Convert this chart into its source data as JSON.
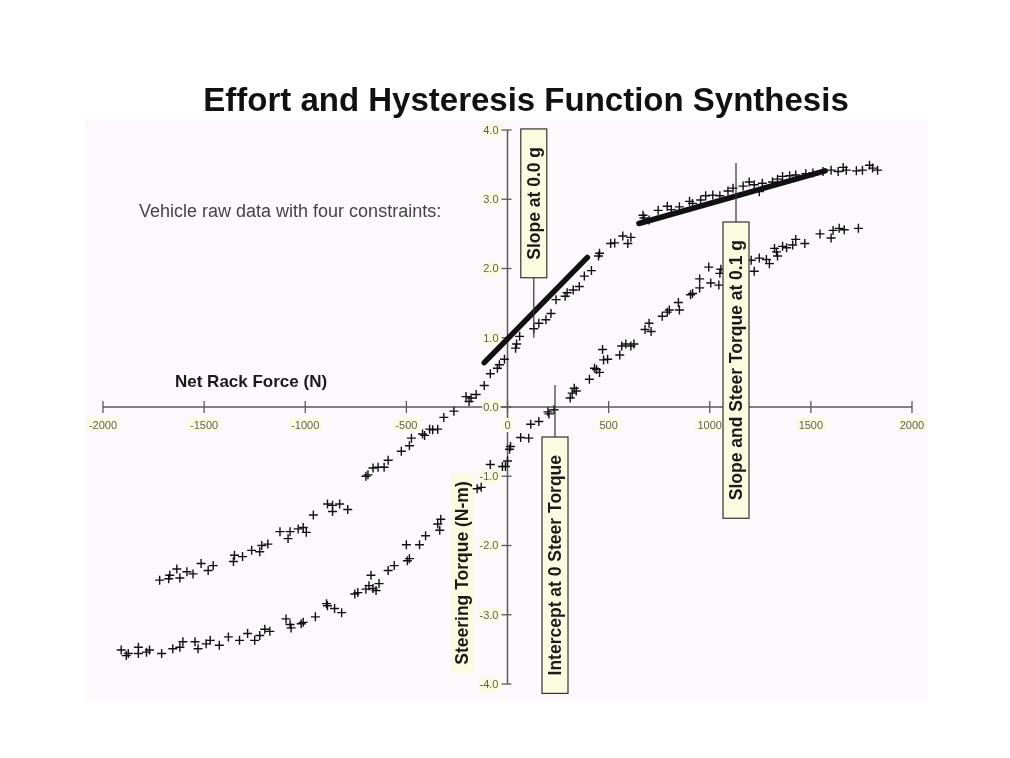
{
  "chart_data": {
    "type": "scatter",
    "title": "Effort and Hysteresis Function Synthesis",
    "xlabel": "Net Rack Force (N)",
    "ylabel": "Steering Torque (N-m)",
    "xlim": [
      -2000,
      2000
    ],
    "ylim": [
      -4,
      4
    ],
    "xticks": [
      -2000,
      -1500,
      -1000,
      -500,
      0,
      500,
      1000,
      1500,
      2000
    ],
    "yticks": [
      {
        "value": 4,
        "label": "4.0"
      },
      {
        "value": 3,
        "label": "3.0"
      },
      {
        "value": 2,
        "label": "2.0"
      },
      {
        "value": 1,
        "label": "1.0"
      },
      {
        "value": 0,
        "label": "0.0"
      },
      {
        "value": -1,
        "label": "-1.0"
      },
      {
        "value": -2,
        "label": "-2.0"
      },
      {
        "value": -3,
        "label": "-3.0"
      },
      {
        "value": -4,
        "label": "-4.0"
      }
    ],
    "marker": "cross",
    "annotations": [
      "Vehicle raw data with four constraints:",
      {
        "text": "Slope at 0.0 g",
        "x": 130,
        "y": 1.0
      },
      "Slope and Steer Torque at 0.1 g",
      "Intercept at 0 Steer Torque"
    ],
    "series": [
      {
        "color": "#111111",
        "x": [
          -115,
          -85,
          -50,
          -40,
          -15,
          40,
          45,
          60,
          130,
          155,
          190,
          215,
          240,
          285,
          295,
          325,
          355,
          380,
          415,
          450,
          455,
          510,
          530,
          570,
          595,
          610,
          670,
          675,
          700,
          745,
          790,
          810,
          850,
          900,
          915,
          955,
          980,
          1015,
          1050,
          1090,
          1115,
          1165,
          1195,
          1220,
          1245,
          1260,
          1310,
          1335,
          1360,
          1395,
          1425,
          1475,
          1510,
          1560,
          1600,
          1635,
          1660,
          1675,
          1725,
          1755,
          1790,
          1805,
          1830
        ],
        "values": [
          0.31,
          0.48,
          0.56,
          0.61,
          0.69,
          0.85,
          0.91,
          1.02,
          1.13,
          1.21,
          1.26,
          1.35,
          1.55,
          1.6,
          1.65,
          1.69,
          1.74,
          1.89,
          1.97,
          2.18,
          2.22,
          2.36,
          2.37,
          2.47,
          2.36,
          2.45,
          2.77,
          2.73,
          2.7,
          2.84,
          2.9,
          2.85,
          2.89,
          2.97,
          2.94,
          2.99,
          3.05,
          3.06,
          3.05,
          3.12,
          3.16,
          3.19,
          3.25,
          3.21,
          3.11,
          3.23,
          3.25,
          3.29,
          3.33,
          3.34,
          3.35,
          3.37,
          3.38,
          3.4,
          3.42,
          3.4,
          3.46,
          3.42,
          3.41,
          3.42,
          3.49,
          3.45,
          3.42
        ]
      },
      {
        "color": "#111111",
        "x": [
          -155,
          -180,
          -190,
          -205,
          -265,
          -315,
          -345,
          -370,
          -385,
          -410,
          -420,
          -475,
          -485,
          -525,
          -590,
          -610,
          -640,
          -665,
          -690,
          -700,
          -790,
          -830,
          -865,
          -865,
          -890,
          -960,
          -995,
          -1010,
          -1035,
          -1075,
          -1085,
          -1125,
          -1185,
          -1215,
          -1225,
          -1265,
          -1310,
          -1350,
          -1355,
          -1455,
          -1480,
          -1515,
          -1555,
          -1585,
          -1620,
          -1635,
          -1670,
          -1675,
          -1720
        ],
        "values": [
          0.18,
          0.13,
          0.08,
          0.15,
          -0.06,
          -0.15,
          -0.32,
          -0.33,
          -0.32,
          -0.41,
          -0.39,
          -0.45,
          -0.56,
          -0.64,
          -0.77,
          -0.87,
          -0.87,
          -0.88,
          -0.98,
          -1.0,
          -1.48,
          -1.4,
          -1.42,
          -1.51,
          -1.4,
          -1.56,
          -1.81,
          -1.74,
          -1.76,
          -1.8,
          -1.9,
          -1.8,
          -1.98,
          -2.0,
          -2.09,
          -2.07,
          -2.16,
          -2.14,
          -2.23,
          -2.29,
          -2.36,
          -2.26,
          -2.41,
          -2.38,
          -2.47,
          -2.34,
          -2.43,
          -2.48,
          -2.5
        ]
      },
      {
        "color": "#111111",
        "x": [
          -1910,
          -1885,
          -1875,
          -1825,
          -1825,
          -1785,
          -1770,
          -1710,
          -1655,
          -1620,
          -1605,
          -1545,
          -1530,
          -1490,
          -1470,
          -1425,
          -1380,
          -1325,
          -1285,
          -1250,
          -1225,
          -1200,
          -1175,
          -1095,
          -1075,
          -1070,
          -1020,
          -1010,
          -950,
          -895,
          -890,
          -855,
          -820,
          -755,
          -740,
          -700,
          -685,
          -675,
          -665,
          -650,
          -635,
          -590,
          -560,
          -500,
          -495,
          -485,
          -435,
          -405,
          -345,
          -335,
          -330,
          -150,
          -130,
          -85,
          -25,
          -10,
          0,
          10,
          15,
          65,
          105,
          115,
          155,
          200,
          205,
          230,
          310,
          320,
          330,
          340,
          405,
          430,
          440,
          455,
          470,
          475,
          495,
          555,
          565,
          585,
          610,
          625,
          680,
          700,
          710,
          765,
          790,
          800,
          845,
          850,
          905,
          915,
          950,
          950,
          995,
          1005,
          1045,
          1050,
          1055,
          1205,
          1220,
          1245,
          1280,
          1295,
          1320,
          1330,
          1335,
          1360,
          1380,
          1410,
          1425,
          1470,
          1545,
          1600,
          1610,
          1640,
          1665,
          1735
        ],
        "values": [
          -3.51,
          -3.59,
          -3.56,
          -3.47,
          -3.56,
          -3.54,
          -3.51,
          -3.56,
          -3.49,
          -3.47,
          -3.39,
          -3.39,
          -3.49,
          -3.42,
          -3.37,
          -3.44,
          -3.32,
          -3.37,
          -3.27,
          -3.37,
          -3.3,
          -3.21,
          -3.24,
          -3.06,
          -3.14,
          -3.19,
          -3.13,
          -3.11,
          -3.03,
          -2.84,
          -2.87,
          -2.91,
          -2.97,
          -2.7,
          -2.68,
          -2.63,
          -2.58,
          -2.43,
          -2.62,
          -2.65,
          -2.55,
          -2.36,
          -2.29,
          -1.99,
          -2.22,
          -2.19,
          -1.99,
          -1.86,
          -1.69,
          -1.78,
          -1.62,
          -1.18,
          -1.16,
          -0.83,
          -0.86,
          -0.86,
          -0.78,
          -0.61,
          -0.57,
          -0.44,
          -0.45,
          -0.25,
          -0.21,
          -0.07,
          -0.1,
          -0.04,
          0.13,
          0.2,
          0.27,
          0.23,
          0.4,
          0.56,
          0.54,
          0.5,
          0.83,
          0.68,
          0.69,
          0.75,
          0.88,
          0.91,
          0.88,
          0.91,
          1.12,
          1.21,
          1.09,
          1.31,
          1.37,
          1.4,
          1.51,
          1.4,
          1.62,
          1.64,
          1.72,
          1.85,
          2.02,
          1.79,
          1.76,
          1.93,
          1.99,
          2.12,
          1.96,
          2.15,
          2.13,
          2.07,
          2.29,
          2.24,
          2.18,
          2.32,
          2.3,
          2.34,
          2.42,
          2.36,
          2.5,
          2.44,
          2.55,
          2.58,
          2.56,
          2.58
        ]
      },
      {
        "type": "line",
        "marker": "none",
        "color": "#111111",
        "x": [
          -115,
          395
        ],
        "values": [
          0.64,
          2.16
        ]
      },
      {
        "type": "line",
        "marker": "none",
        "color": "#111111",
        "x": [
          650,
          1570
        ],
        "values": [
          2.65,
          3.41
        ]
      }
    ]
  }
}
